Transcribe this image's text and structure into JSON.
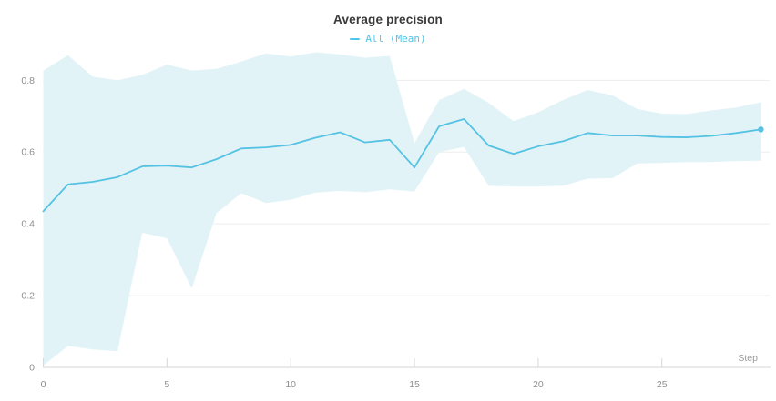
{
  "page": {
    "background": "#ffffff"
  },
  "colors": {
    "line": "#54c2e2",
    "legend_text": "#4fc6e8",
    "band": "#e2f3f8",
    "grid": "#ededed",
    "axis": "#d4d4d4",
    "tick": "#d8d8d8",
    "tick_label": "#8f8f8f",
    "title": "#3a3a3a",
    "axis_title": "#9b9b9b"
  },
  "chart_data": {
    "type": "line",
    "title": "Average precision",
    "xlabel": "Step",
    "ylabel": "",
    "legend_entries": [
      "All (Mean)"
    ],
    "legend_position": "top-center",
    "grid": "horizontal-only",
    "xticks": [
      0,
      5,
      10,
      15,
      20,
      25
    ],
    "yticks": [
      0,
      0.2,
      0.4,
      0.6,
      0.8
    ],
    "xlim": [
      0,
      29.4
    ],
    "ylim": [
      0,
      0.88
    ],
    "end_point_marker": true,
    "x": [
      0,
      1,
      2,
      3,
      4,
      5,
      6,
      7,
      8,
      9,
      10,
      11,
      12,
      13,
      14,
      15,
      16,
      17,
      18,
      19,
      20,
      21,
      22,
      23,
      24,
      25,
      26,
      27,
      28,
      29
    ],
    "series": [
      {
        "name": "All (Mean)",
        "color": "#54c2e2",
        "values": [
          0.435,
          0.51,
          0.517,
          0.53,
          0.56,
          0.562,
          0.557,
          0.58,
          0.61,
          0.613,
          0.62,
          0.64,
          0.655,
          0.627,
          0.634,
          0.557,
          0.672,
          0.692,
          0.618,
          0.595,
          0.616,
          0.63,
          0.653,
          0.646,
          0.646,
          0.642,
          0.641,
          0.645,
          0.653,
          0.663
        ],
        "band": {
          "color": "#e2f3f8",
          "upper": [
            0.827,
            0.87,
            0.81,
            0.8,
            0.815,
            0.844,
            0.827,
            0.832,
            0.852,
            0.875,
            0.866,
            0.878,
            0.872,
            0.863,
            0.868,
            0.625,
            0.745,
            0.776,
            0.737,
            0.686,
            0.711,
            0.745,
            0.773,
            0.758,
            0.72,
            0.707,
            0.706,
            0.716,
            0.724,
            0.739
          ],
          "lower": [
            0.005,
            0.06,
            0.05,
            0.045,
            0.375,
            0.36,
            0.22,
            0.43,
            0.485,
            0.458,
            0.467,
            0.487,
            0.492,
            0.488,
            0.496,
            0.49,
            0.6,
            0.614,
            0.506,
            0.504,
            0.504,
            0.506,
            0.526,
            0.527,
            0.568,
            0.57,
            0.572,
            0.572,
            0.575,
            0.576
          ]
        }
      }
    ]
  }
}
